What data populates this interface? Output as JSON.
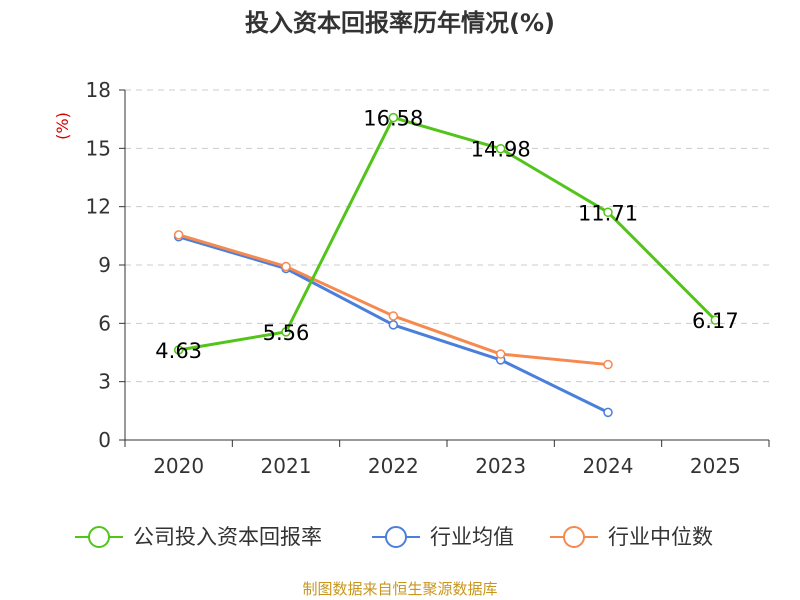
{
  "chart_data": {
    "type": "line",
    "title": "投入资本回报率历年情况(%)",
    "ylabel": "(%)",
    "xlabel": "",
    "ylim": [
      0,
      18
    ],
    "yticks": [
      0,
      3,
      6,
      9,
      12,
      15,
      18
    ],
    "categories": [
      "2020",
      "2021",
      "2022",
      "2023",
      "2024",
      "2025"
    ],
    "series": [
      {
        "name": "公司投入资本回报率",
        "color": "#52c41a",
        "values": [
          4.63,
          5.56,
          16.58,
          14.98,
          11.71,
          6.17
        ],
        "labels": [
          "4.63",
          "5.56",
          "16.58",
          "14.98",
          "11.71",
          "6.17"
        ]
      },
      {
        "name": "行业均值",
        "color": "#4a7fdb",
        "values": [
          10.45,
          8.82,
          5.92,
          4.12,
          1.42,
          null
        ]
      },
      {
        "name": "行业中位数",
        "color": "#f5894f",
        "values": [
          10.55,
          8.92,
          6.38,
          4.42,
          3.88,
          null
        ]
      }
    ],
    "grid": true,
    "legend_position": "bottom"
  },
  "source": "制图数据来自恒生聚源数据库",
  "colors": {
    "axis": "#333333",
    "grid": "#cccccc",
    "ylabel": "#d40000",
    "source": "#c8961e"
  }
}
